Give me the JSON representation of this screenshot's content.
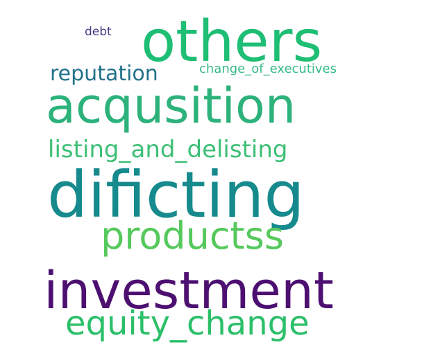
{
  "words": {
    "others": {
      "text": "others",
      "color": "#1ebe74"
    },
    "debt": {
      "text": "debt",
      "color": "#453b83"
    },
    "reputation": {
      "text": "reputation",
      "color": "#22718b"
    },
    "change": {
      "text": "change_of_executives",
      "color": "#36bb84"
    },
    "acqusition": {
      "text": "acqusition",
      "color": "#2cb27a"
    },
    "listing": {
      "text": "listing_and_delisting",
      "color": "#3dbf76"
    },
    "dificting": {
      "text": "dificting",
      "color": "#168a8c"
    },
    "productss": {
      "text": "productss",
      "color": "#56c95d"
    },
    "investment": {
      "text": "investment",
      "color": "#4d1071"
    },
    "equity": {
      "text": "equity_change",
      "color": "#2bbf6a"
    }
  }
}
